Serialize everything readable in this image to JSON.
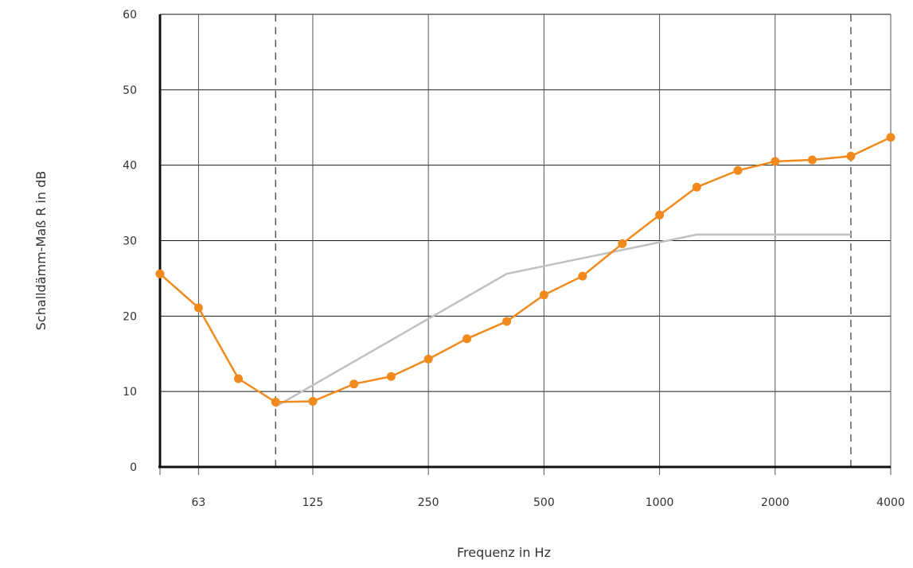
{
  "chart_data": {
    "type": "line",
    "title": "",
    "xlabel": "Frequenz in Hz",
    "ylabel": "Schalldämm-Maß R in dB",
    "x_scale": "log",
    "x_tick_labels": [
      "63",
      "125",
      "250",
      "500",
      "1000",
      "2000",
      "4000"
    ],
    "x_tick_values": [
      63,
      125,
      250,
      500,
      1000,
      2000,
      4000
    ],
    "xlim": [
      50,
      4000
    ],
    "ylim": [
      0,
      60
    ],
    "y_ticks": [
      0,
      10,
      20,
      30,
      40,
      50,
      60
    ],
    "y_tick_labels": [
      "0",
      "10",
      "20",
      "30",
      "40",
      "50",
      "60"
    ],
    "grid": true,
    "reference_lines_x": [
      100,
      3150
    ],
    "series": [
      {
        "color": "#f08a1c",
        "markers": true,
        "x": [
          50,
          63,
          80,
          100,
          125,
          160,
          200,
          250,
          315,
          400,
          500,
          630,
          800,
          1000,
          1250,
          1600,
          2000,
          2500,
          3150,
          4000
        ],
        "values": [
          25.6,
          21.1,
          11.7,
          8.6,
          8.7,
          11.0,
          12.0,
          14.3,
          17.0,
          19.3,
          22.8,
          25.3,
          29.6,
          33.4,
          37.1,
          39.3,
          40.5,
          40.7,
          41.2,
          43.7
        ]
      },
      {
        "color": "#c0c0c0",
        "markers": false,
        "x": [
          100,
          400,
          1250,
          3150
        ],
        "values": [
          8.0,
          25.6,
          30.8,
          30.8
        ]
      }
    ]
  }
}
